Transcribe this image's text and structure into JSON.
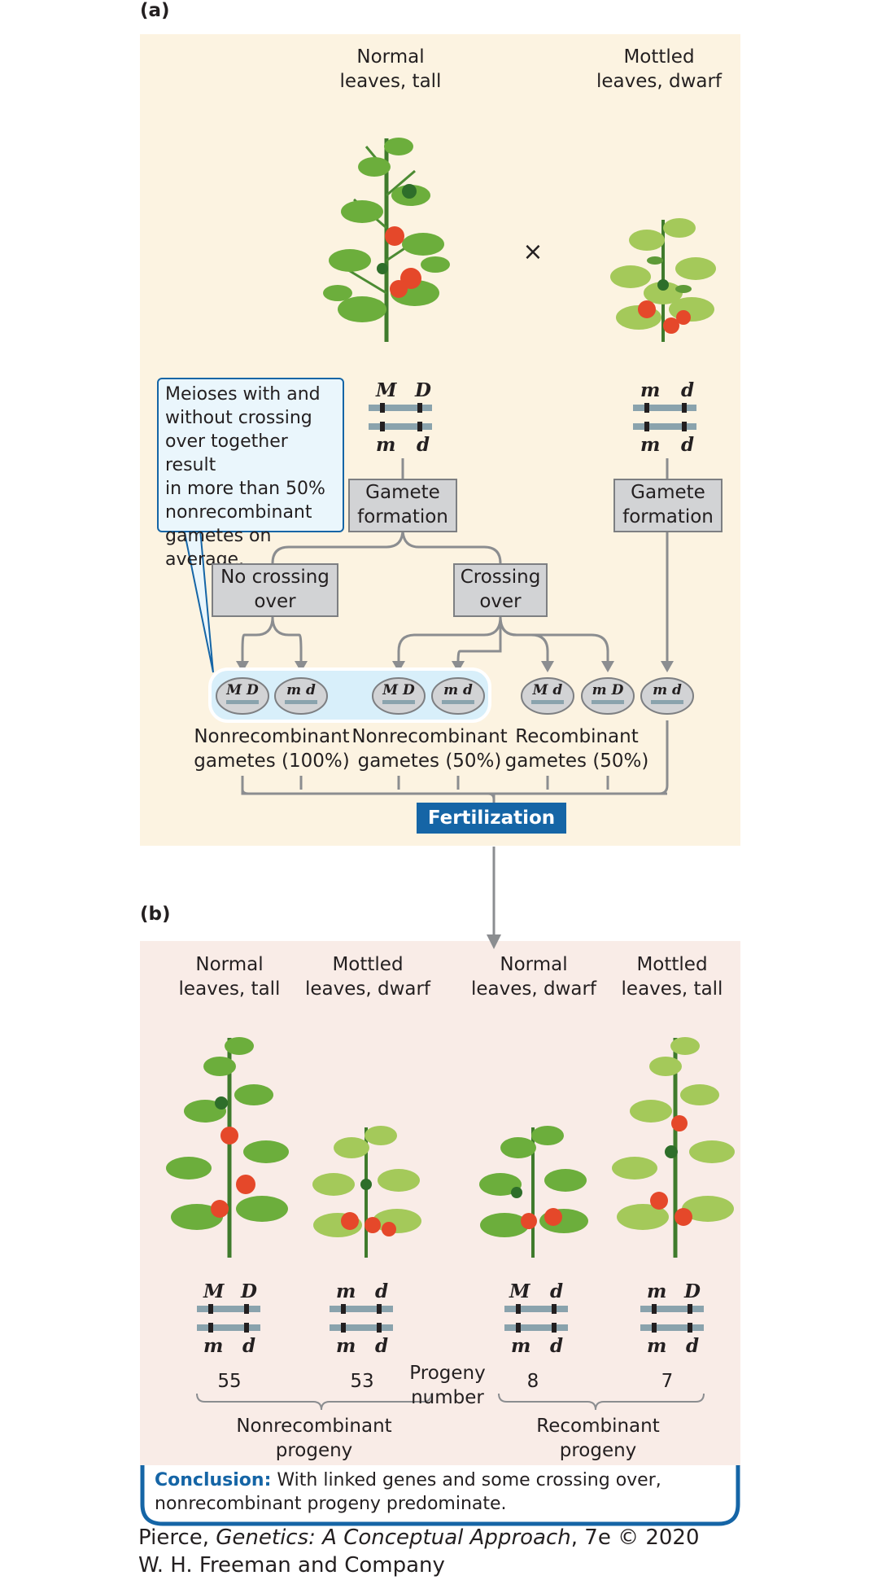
{
  "panel_a": {
    "letter": "(a)",
    "parent1": {
      "line1": "Normal",
      "line2": "leaves, tall",
      "top_genes": [
        "M",
        "D"
      ],
      "bottom_genes": [
        "m",
        "d"
      ]
    },
    "parent2": {
      "line1": "Mottled",
      "line2": "leaves, dwarf",
      "top_genes": [
        "m",
        "d"
      ],
      "bottom_genes": [
        "m",
        "d"
      ]
    },
    "cross_symbol": "×",
    "callout": [
      "Meioses with and",
      "without crossing",
      "over together result",
      "in more than 50%",
      "nonrecombinant",
      "gametes on average."
    ],
    "gamete_formation": [
      "Gamete",
      "formation"
    ],
    "no_crossing": [
      "No crossing",
      "over"
    ],
    "crossing": [
      "Crossing",
      "over"
    ],
    "gametes": [
      {
        "a": "M",
        "b": "D"
      },
      {
        "a": "m",
        "b": "d"
      },
      {
        "a": "M",
        "b": "D"
      },
      {
        "a": "m",
        "b": "d"
      },
      {
        "a": "M",
        "b": "d"
      },
      {
        "a": "m",
        "b": "D"
      },
      {
        "a": "m",
        "b": "d"
      }
    ],
    "gamete_labels": [
      {
        "line1": "Nonrecombinant",
        "line2": "gametes (100%)"
      },
      {
        "line1": "Nonrecombinant",
        "line2": "gametes (50%)"
      },
      {
        "line1": "Recombinant",
        "line2": "gametes (50%)"
      }
    ],
    "fertilization": "Fertilization"
  },
  "panel_b": {
    "letter": "(b)",
    "progeny": [
      {
        "line1": "Normal",
        "line2": "leaves, tall",
        "top": [
          "M",
          "D"
        ],
        "bottom": [
          "m",
          "d"
        ],
        "count": "55"
      },
      {
        "line1": "Mottled",
        "line2": "leaves, dwarf",
        "top": [
          "m",
          "d"
        ],
        "bottom": [
          "m",
          "d"
        ],
        "count": "53"
      },
      {
        "line1": "Normal",
        "line2": "leaves, dwarf",
        "top": [
          "M",
          "d"
        ],
        "bottom": [
          "m",
          "d"
        ],
        "count": "8"
      },
      {
        "line1": "Mottled",
        "line2": "leaves, tall",
        "top": [
          "m",
          "D"
        ],
        "bottom": [
          "m",
          "d"
        ],
        "count": "7"
      }
    ],
    "progeny_number": [
      "Progeny",
      "number"
    ],
    "nonrecombinant": [
      "Nonrecombinant",
      "progeny"
    ],
    "recombinant": [
      "Recombinant",
      "progeny"
    ]
  },
  "conclusion": {
    "label": "Conclusion:",
    "text1": "With linked genes and some crossing over,",
    "text2": "nonrecombinant progeny predominate."
  },
  "credit": {
    "prefix": "Pierce, ",
    "title": "Genetics: A Conceptual Approach",
    "suffix": ", 7e © 2020",
    "line2": "W. H. Freeman and Company"
  },
  "colors": {
    "panel_a_bg": "#fcf3e1",
    "panel_b_bg": "#f9ece7",
    "accent": "#1565a6",
    "box": "#d2d3d5",
    "chromosome": "#8aa3ad"
  }
}
